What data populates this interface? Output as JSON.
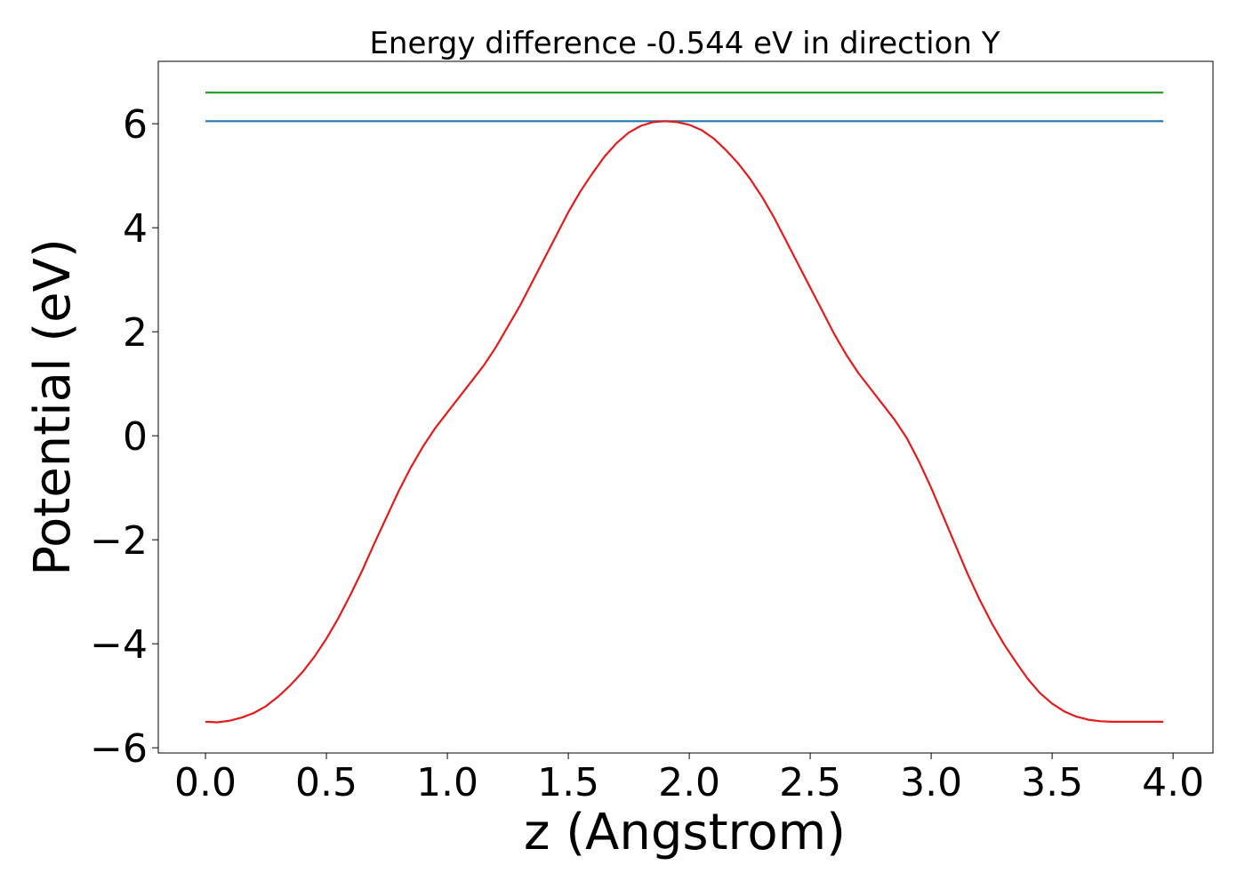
{
  "chart_data": {
    "type": "line",
    "title": "Energy difference -0.544 eV in direction Y",
    "xlabel": "z (Angstrom)",
    "ylabel": "Potential (eV)",
    "xlim": [
      -0.195,
      4.165
    ],
    "ylim": [
      -6.1,
      7.2
    ],
    "xticks": [
      0.0,
      0.5,
      1.0,
      1.5,
      2.0,
      2.5,
      3.0,
      3.5,
      4.0
    ],
    "xtick_labels": [
      "0.0",
      "0.5",
      "1.0",
      "1.5",
      "2.0",
      "2.5",
      "3.0",
      "3.5",
      "4.0"
    ],
    "yticks": [
      -6,
      -4,
      -2,
      0,
      2,
      4,
      6
    ],
    "ytick_labels": [
      "−6",
      "−4",
      "−2",
      "0",
      "2",
      "4",
      "6"
    ],
    "grid": false,
    "legend": "none",
    "series": [
      {
        "color": "#2ca02c",
        "x": [
          0.0,
          3.96
        ],
        "y": [
          6.6,
          6.6
        ]
      },
      {
        "color": "#1f77b4",
        "x": [
          0.0,
          3.96
        ],
        "y": [
          6.05,
          6.05
        ]
      },
      {
        "color": "#e41a1c",
        "x": [
          0.0,
          0.05,
          0.1,
          0.15,
          0.2,
          0.25,
          0.3,
          0.35,
          0.4,
          0.45,
          0.5,
          0.55,
          0.6,
          0.65,
          0.7,
          0.75,
          0.8,
          0.85,
          0.9,
          0.95,
          1.0,
          1.05,
          1.1,
          1.15,
          1.2,
          1.25,
          1.3,
          1.35,
          1.4,
          1.45,
          1.5,
          1.55,
          1.6,
          1.65,
          1.7,
          1.75,
          1.8,
          1.85,
          1.9,
          1.95,
          2.0,
          2.05,
          2.1,
          2.15,
          2.2,
          2.25,
          2.3,
          2.35,
          2.4,
          2.45,
          2.5,
          2.55,
          2.6,
          2.65,
          2.7,
          2.75,
          2.8,
          2.85,
          2.9,
          2.95,
          3.0,
          3.05,
          3.1,
          3.15,
          3.2,
          3.25,
          3.3,
          3.35,
          3.4,
          3.45,
          3.5,
          3.55,
          3.6,
          3.65,
          3.7,
          3.75,
          3.8,
          3.85,
          3.9,
          3.96
        ],
        "y": [
          -5.5,
          -5.51,
          -5.48,
          -5.42,
          -5.33,
          -5.2,
          -5.02,
          -4.8,
          -4.55,
          -4.25,
          -3.9,
          -3.5,
          -3.05,
          -2.57,
          -2.05,
          -1.55,
          -1.05,
          -0.6,
          -0.2,
          0.15,
          0.45,
          0.75,
          1.05,
          1.35,
          1.7,
          2.1,
          2.5,
          2.95,
          3.4,
          3.85,
          4.3,
          4.7,
          5.05,
          5.37,
          5.63,
          5.83,
          5.96,
          6.03,
          6.05,
          6.03,
          5.98,
          5.88,
          5.72,
          5.5,
          5.25,
          4.95,
          4.6,
          4.2,
          3.75,
          3.3,
          2.85,
          2.4,
          1.95,
          1.55,
          1.2,
          0.9,
          0.6,
          0.3,
          -0.05,
          -0.5,
          -1.0,
          -1.55,
          -2.1,
          -2.65,
          -3.15,
          -3.6,
          -4.0,
          -4.35,
          -4.68,
          -4.95,
          -5.15,
          -5.3,
          -5.4,
          -5.46,
          -5.49,
          -5.5,
          -5.5,
          -5.5,
          -5.5,
          -5.5
        ]
      }
    ]
  }
}
